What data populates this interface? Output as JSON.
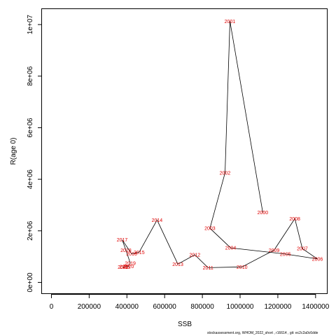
{
  "chart_data": {
    "type": "line",
    "xlabel": "SSB",
    "ylabel": "R(age 0)",
    "xlim": [
      -50000,
      1460000
    ],
    "ylim": [
      -450000,
      10600000
    ],
    "x_ticks": [
      {
        "value": 0,
        "label": "0"
      },
      {
        "value": 200000,
        "label": "200000"
      },
      {
        "value": 400000,
        "label": "400000"
      },
      {
        "value": 600000,
        "label": "600000"
      },
      {
        "value": 800000,
        "label": "800000"
      },
      {
        "value": 1000000,
        "label": "1000000"
      },
      {
        "value": 1200000,
        "label": "1200000"
      },
      {
        "value": 1400000,
        "label": "1400000"
      }
    ],
    "y_ticks": [
      {
        "value": 0,
        "label": "0e+00"
      },
      {
        "value": 2000000,
        "label": "2e+06"
      },
      {
        "value": 4000000,
        "label": "4e+06"
      },
      {
        "value": 6000000,
        "label": "6e+06"
      },
      {
        "value": 8000000,
        "label": "8e+06"
      },
      {
        "value": 10000000,
        "label": "1e+07"
      }
    ],
    "grid": false,
    "points": [
      {
        "label": "2000",
        "x": 1120000,
        "y": 2710000
      },
      {
        "label": "2001",
        "x": 946000,
        "y": 10130000
      },
      {
        "label": "2002",
        "x": 920000,
        "y": 4250000
      },
      {
        "label": "2003",
        "x": 840000,
        "y": 2100000
      },
      {
        "label": "2004",
        "x": 950000,
        "y": 1340000
      },
      {
        "label": "2005",
        "x": 1240000,
        "y": 1100000
      },
      {
        "label": "2006",
        "x": 1410000,
        "y": 910000
      },
      {
        "label": "2007",
        "x": 1330000,
        "y": 1310000
      },
      {
        "label": "2008",
        "x": 1290000,
        "y": 2470000
      },
      {
        "label": "2009",
        "x": 1180000,
        "y": 1250000
      },
      {
        "label": "2010",
        "x": 1010000,
        "y": 600000
      },
      {
        "label": "2011",
        "x": 830000,
        "y": 570000
      },
      {
        "label": "2012",
        "x": 760000,
        "y": 1070000
      },
      {
        "label": "2013",
        "x": 670000,
        "y": 710000
      },
      {
        "label": "2014",
        "x": 560000,
        "y": 2420000
      },
      {
        "label": "2015",
        "x": 465000,
        "y": 1170000
      },
      {
        "label": "2016",
        "x": 425000,
        "y": 1110000
      },
      {
        "label": "2017",
        "x": 375000,
        "y": 1650000
      },
      {
        "label": "2018",
        "x": 395000,
        "y": 1250000
      },
      {
        "label": "2019",
        "x": 418000,
        "y": 750000
      },
      {
        "label": "2020",
        "x": 408000,
        "y": 620000
      },
      {
        "label": "2021",
        "x": 390000,
        "y": 610000
      },
      {
        "label": "2022",
        "x": 380000,
        "y": 600000
      }
    ]
  },
  "footnote": "stockassessment.org, WHOM_2022_short , r16614 , git: ec2c2a0c6dde"
}
